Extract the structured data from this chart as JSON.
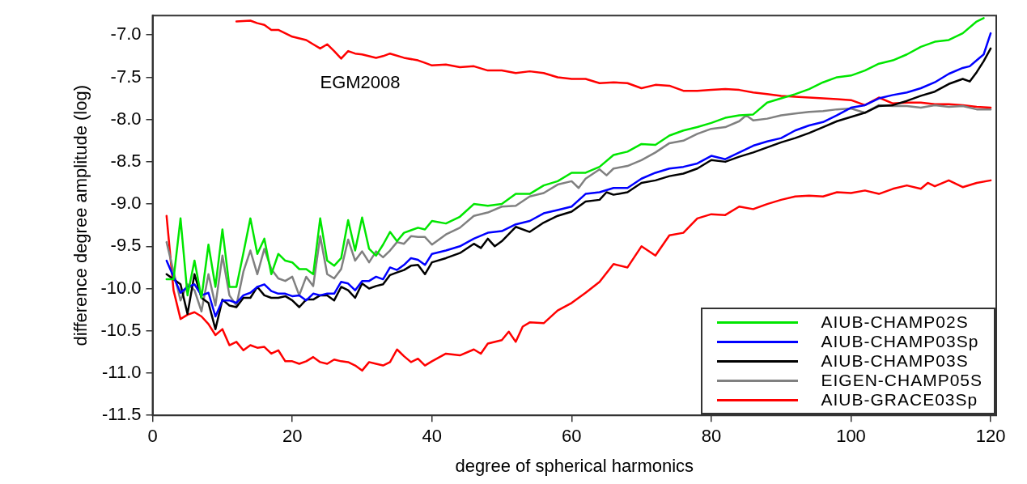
{
  "chart_data": {
    "type": "line",
    "xlabel": "degree of spherical harmonics",
    "ylabel": "difference degree amplitude (log)",
    "xlim": [
      0,
      120.8
    ],
    "xticks": [
      0,
      20,
      40,
      60,
      80,
      100,
      120
    ],
    "ylim": [
      -11.5,
      -6.77
    ],
    "yticks": [
      -11.5,
      {
        "value": -11,
        "label": "-11.0"
      },
      -10.5,
      {
        "value": -10,
        "label": "-10.0"
      },
      -9.5,
      {
        "value": -9,
        "label": "-9.0"
      },
      -8.5,
      {
        "value": -8,
        "label": "-8.0"
      },
      -7.5,
      {
        "value": -7,
        "label": "-7.0"
      }
    ],
    "grid": false,
    "legend": "bottom right",
    "marker": "none",
    "annotations": [
      "EGM2008"
    ],
    "series": [
      {
        "name": "AIUB-CHAMP02S",
        "color": "#00e600",
        "x": [
          2,
          3,
          4,
          5,
          6,
          7,
          8,
          9,
          10,
          11,
          12,
          13,
          14,
          15,
          16,
          17,
          18,
          19,
          20,
          21,
          22,
          23,
          24,
          25,
          26,
          27,
          28,
          29,
          30,
          31,
          32,
          33,
          34,
          35,
          36,
          37,
          38,
          39,
          40,
          42,
          44,
          46,
          48,
          50,
          52,
          54,
          56,
          58,
          60,
          62,
          64,
          66,
          68,
          70,
          72,
          74,
          76,
          78,
          80,
          82,
          84,
          86,
          88,
          90,
          92,
          94,
          96,
          98,
          100,
          102,
          104,
          106,
          108,
          110,
          112,
          114,
          116,
          118,
          119
        ],
        "values": [
          -9.89,
          -9.89,
          -9.17,
          -10.08,
          -9.67,
          -10.11,
          -9.48,
          -9.98,
          -9.3,
          -9.98,
          -9.98,
          -9.58,
          -9.17,
          -9.59,
          -9.41,
          -9.83,
          -9.59,
          -9.67,
          -9.69,
          -9.77,
          -9.77,
          -9.83,
          -9.17,
          -9.67,
          -9.73,
          -9.64,
          -9.19,
          -9.55,
          -9.16,
          -9.53,
          -9.61,
          -9.48,
          -9.33,
          -9.44,
          -9.34,
          -9.31,
          -9.28,
          -9.3,
          -9.2,
          -9.23,
          -9.15,
          -9.0,
          -9.02,
          -9.0,
          -8.88,
          -8.88,
          -8.78,
          -8.73,
          -8.63,
          -8.63,
          -8.56,
          -8.42,
          -8.38,
          -8.29,
          -8.3,
          -8.19,
          -8.13,
          -8.09,
          -8.04,
          -7.98,
          -7.95,
          -7.94,
          -7.8,
          -7.75,
          -7.7,
          -7.64,
          -7.56,
          -7.5,
          -7.48,
          -7.42,
          -7.34,
          -7.3,
          -7.23,
          -7.14,
          -7.08,
          -7.06,
          -6.98,
          -6.84,
          -6.8
        ]
      },
      {
        "name": "AIUB-CHAMP03Sp",
        "color": "#0000ff",
        "x": [
          2,
          3,
          4,
          5,
          6,
          7,
          8,
          9,
          10,
          11,
          12,
          13,
          14,
          15,
          16,
          17,
          18,
          19,
          20,
          21,
          22,
          23,
          24,
          25,
          26,
          27,
          28,
          29,
          30,
          31,
          32,
          33,
          34,
          35,
          36,
          37,
          38,
          39,
          40,
          42,
          44,
          46,
          48,
          50,
          52,
          54,
          56,
          58,
          60,
          62,
          64,
          66,
          68,
          70,
          72,
          74,
          76,
          78,
          80,
          82,
          84,
          86,
          88,
          90,
          92,
          94,
          96,
          98,
          100,
          102,
          104,
          106,
          108,
          110,
          112,
          114,
          116,
          117,
          118,
          119,
          120
        ],
        "values": [
          -9.67,
          -9.86,
          -10.05,
          -9.98,
          -9.95,
          -10.08,
          -10.05,
          -10.33,
          -10.14,
          -10.14,
          -10.17,
          -10.08,
          -10.05,
          -9.98,
          -9.95,
          -10.03,
          -10.06,
          -10.06,
          -10.09,
          -10.08,
          -10.14,
          -10.06,
          -10.08,
          -10.06,
          -10.06,
          -9.92,
          -9.94,
          -10.02,
          -9.91,
          -9.91,
          -9.86,
          -9.89,
          -9.75,
          -9.78,
          -9.72,
          -9.64,
          -9.66,
          -9.72,
          -9.59,
          -9.55,
          -9.5,
          -9.41,
          -9.34,
          -9.32,
          -9.24,
          -9.2,
          -9.11,
          -9.07,
          -9.03,
          -8.88,
          -8.86,
          -8.81,
          -8.81,
          -8.7,
          -8.63,
          -8.58,
          -8.56,
          -8.52,
          -8.43,
          -8.47,
          -8.39,
          -8.31,
          -8.26,
          -8.22,
          -8.13,
          -8.07,
          -8.03,
          -7.95,
          -7.86,
          -7.83,
          -7.75,
          -7.71,
          -7.68,
          -7.63,
          -7.56,
          -7.46,
          -7.39,
          -7.37,
          -7.3,
          -7.23,
          -6.98
        ]
      },
      {
        "name": "AIUB-CHAMP03S",
        "color": "#000000",
        "x": [
          2,
          3,
          4,
          5,
          6,
          7,
          8,
          9,
          10,
          11,
          12,
          13,
          14,
          15,
          16,
          17,
          18,
          19,
          20,
          21,
          22,
          23,
          24,
          25,
          26,
          27,
          28,
          29,
          30,
          31,
          32,
          33,
          34,
          35,
          36,
          37,
          38,
          39,
          40,
          42,
          44,
          46,
          47,
          48,
          49,
          50,
          52,
          54,
          56,
          58,
          60,
          62,
          64,
          65,
          66,
          68,
          70,
          72,
          74,
          76,
          78,
          80,
          82,
          84,
          86,
          88,
          90,
          92,
          94,
          96,
          98,
          100,
          102,
          104,
          106,
          108,
          110,
          112,
          114,
          116,
          117,
          118,
          119,
          120
        ],
        "values": [
          -9.83,
          -9.89,
          -9.95,
          -10.3,
          -9.83,
          -10.11,
          -10.17,
          -10.48,
          -10.13,
          -10.2,
          -10.22,
          -10.11,
          -10.11,
          -9.98,
          -10.08,
          -10.11,
          -10.11,
          -10.09,
          -10.14,
          -10.22,
          -10.13,
          -10.13,
          -10.08,
          -10.08,
          -10.14,
          -9.98,
          -10.02,
          -10.11,
          -9.94,
          -10.0,
          -9.97,
          -9.95,
          -9.84,
          -9.81,
          -9.78,
          -9.73,
          -9.72,
          -9.83,
          -9.69,
          -9.64,
          -9.58,
          -9.47,
          -9.52,
          -9.41,
          -9.5,
          -9.44,
          -9.27,
          -9.33,
          -9.22,
          -9.14,
          -9.09,
          -8.97,
          -8.95,
          -8.86,
          -8.89,
          -8.86,
          -8.75,
          -8.72,
          -8.67,
          -8.64,
          -8.58,
          -8.48,
          -8.5,
          -8.44,
          -8.39,
          -8.33,
          -8.27,
          -8.22,
          -8.16,
          -8.09,
          -8.02,
          -7.97,
          -7.92,
          -7.84,
          -7.83,
          -7.78,
          -7.72,
          -7.67,
          -7.58,
          -7.52,
          -7.55,
          -7.44,
          -7.31,
          -7.16
        ]
      },
      {
        "name": "EIGEN-CHAMP05S",
        "color": "#808080",
        "x": [
          2,
          3,
          4,
          5,
          6,
          7,
          8,
          9,
          10,
          11,
          12,
          13,
          14,
          15,
          16,
          17,
          18,
          19,
          20,
          21,
          22,
          23,
          24,
          25,
          26,
          27,
          28,
          29,
          30,
          31,
          32,
          33,
          34,
          35,
          36,
          37,
          38,
          39,
          40,
          42,
          44,
          46,
          48,
          50,
          52,
          54,
          56,
          58,
          60,
          61,
          62,
          64,
          65,
          66,
          68,
          70,
          72,
          74,
          76,
          78,
          80,
          82,
          84,
          85,
          86,
          88,
          90,
          92,
          94,
          96,
          98,
          100,
          102,
          104,
          106,
          108,
          110,
          112,
          114,
          116,
          118,
          120
        ],
        "values": [
          -9.45,
          -9.8,
          -10.14,
          -9.95,
          -10.02,
          -10.27,
          -9.83,
          -10.2,
          -9.61,
          -10.08,
          -10.2,
          -9.8,
          -9.55,
          -9.83,
          -9.53,
          -9.77,
          -9.88,
          -9.91,
          -9.86,
          -10.08,
          -9.86,
          -9.97,
          -9.38,
          -9.83,
          -9.88,
          -9.77,
          -9.42,
          -9.67,
          -9.56,
          -9.69,
          -9.56,
          -9.63,
          -9.55,
          -9.45,
          -9.47,
          -9.38,
          -9.39,
          -9.39,
          -9.48,
          -9.36,
          -9.28,
          -9.14,
          -9.1,
          -9.03,
          -9.02,
          -8.91,
          -8.87,
          -8.77,
          -8.73,
          -8.81,
          -8.7,
          -8.59,
          -8.66,
          -8.58,
          -8.55,
          -8.48,
          -8.39,
          -8.28,
          -8.25,
          -8.17,
          -8.11,
          -8.09,
          -8.02,
          -7.95,
          -8.01,
          -7.99,
          -7.95,
          -7.93,
          -7.91,
          -7.9,
          -7.88,
          -7.87,
          -7.92,
          -7.83,
          -7.84,
          -7.84,
          -7.86,
          -7.83,
          -7.85,
          -7.84,
          -7.88,
          -7.88
        ]
      },
      {
        "name": "AIUB-GRACE03Sp",
        "color": "#ff0000",
        "x": [
          2,
          3,
          4,
          5,
          6,
          7,
          8,
          9,
          10,
          11,
          12,
          13,
          14,
          15,
          16,
          17,
          18,
          19,
          20,
          21,
          22,
          23,
          24,
          25,
          26,
          27,
          28,
          29,
          30,
          31,
          32,
          33,
          34,
          35,
          36,
          37,
          38,
          39,
          40,
          42,
          44,
          46,
          47,
          48,
          50,
          51,
          52,
          53,
          54,
          56,
          58,
          60,
          62,
          64,
          66,
          68,
          70,
          72,
          74,
          76,
          78,
          80,
          82,
          84,
          86,
          88,
          90,
          92,
          94,
          96,
          98,
          100,
          102,
          104,
          106,
          108,
          110,
          111,
          112,
          114,
          116,
          118,
          120
        ],
        "values": [
          -9.14,
          -10.02,
          -10.36,
          -10.31,
          -10.28,
          -10.33,
          -10.42,
          -10.55,
          -10.48,
          -10.67,
          -10.63,
          -10.73,
          -10.67,
          -10.7,
          -10.69,
          -10.77,
          -10.73,
          -10.86,
          -10.86,
          -10.89,
          -10.86,
          -10.81,
          -10.87,
          -10.89,
          -10.84,
          -10.86,
          -10.87,
          -10.91,
          -10.97,
          -10.87,
          -10.89,
          -10.91,
          -10.87,
          -10.72,
          -10.8,
          -10.87,
          -10.83,
          -10.91,
          -10.86,
          -10.77,
          -10.79,
          -10.72,
          -10.77,
          -10.65,
          -10.61,
          -10.51,
          -10.63,
          -10.45,
          -10.4,
          -10.41,
          -10.26,
          -10.17,
          -10.05,
          -9.92,
          -9.71,
          -9.75,
          -9.5,
          -9.61,
          -9.37,
          -9.34,
          -9.17,
          -9.12,
          -9.13,
          -9.03,
          -9.06,
          -9.0,
          -8.95,
          -8.91,
          -8.9,
          -8.91,
          -8.86,
          -8.87,
          -8.84,
          -8.88,
          -8.82,
          -8.78,
          -8.82,
          -8.75,
          -8.79,
          -8.72,
          -8.8,
          -8.75,
          -8.72
        ]
      },
      {
        "color": "#ff0000",
        "x": [
          12,
          14,
          15,
          16,
          17,
          18,
          19,
          20,
          22,
          23,
          24,
          25,
          26,
          27,
          28,
          29,
          30,
          32,
          33,
          34,
          36,
          38,
          39,
          40,
          42,
          44,
          46,
          48,
          50,
          52,
          54,
          56,
          58,
          60,
          62,
          64,
          66,
          68,
          70,
          72,
          74,
          76,
          78,
          80,
          82,
          84,
          86,
          88,
          90,
          92,
          94,
          96,
          98,
          100,
          102,
          104,
          106,
          108,
          110,
          112,
          114,
          116,
          118,
          120
        ],
        "values": [
          -6.84,
          -6.83,
          -6.86,
          -6.88,
          -6.94,
          -6.94,
          -6.98,
          -7.02,
          -7.06,
          -7.11,
          -7.16,
          -7.11,
          -7.19,
          -7.28,
          -7.19,
          -7.22,
          -7.23,
          -7.27,
          -7.25,
          -7.22,
          -7.27,
          -7.3,
          -7.33,
          -7.36,
          -7.35,
          -7.38,
          -7.37,
          -7.42,
          -7.42,
          -7.45,
          -7.43,
          -7.45,
          -7.5,
          -7.52,
          -7.52,
          -7.57,
          -7.56,
          -7.57,
          -7.63,
          -7.59,
          -7.6,
          -7.66,
          -7.66,
          -7.65,
          -7.64,
          -7.65,
          -7.68,
          -7.7,
          -7.72,
          -7.73,
          -7.74,
          -7.75,
          -7.76,
          -7.77,
          -7.83,
          -7.74,
          -7.81,
          -7.8,
          -7.8,
          -7.82,
          -7.82,
          -7.83,
          -7.85,
          -7.86
        ]
      }
    ]
  }
}
